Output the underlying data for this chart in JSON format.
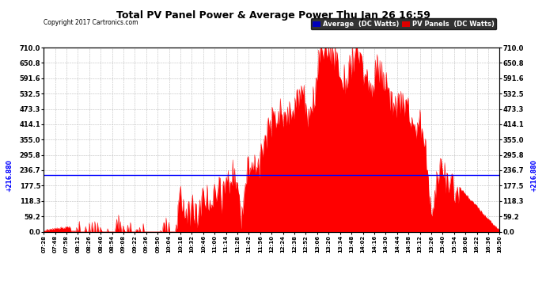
{
  "title": "Total PV Panel Power & Average Power Thu Jan 26 16:59",
  "copyright": "Copyright 2017 Cartronics.com",
  "legend_items": [
    {
      "label": "Average  (DC Watts)",
      "color": "#0000bb",
      "text_color": "#ffffff"
    },
    {
      "label": "PV Panels  (DC Watts)",
      "color": "#dd0000",
      "text_color": "#ffffff"
    }
  ],
  "average_value": 216.88,
  "yticks": [
    0.0,
    59.2,
    118.3,
    177.5,
    236.7,
    295.8,
    355.0,
    414.1,
    473.3,
    532.5,
    591.6,
    650.8,
    710.0
  ],
  "ymax": 710.0,
  "ymin": 0.0,
  "fill_color": "#ff0000",
  "line_color": "#0000ff",
  "background_color": "#ffffff",
  "grid_color": "#bbbbbb",
  "xtick_labels": [
    "07:28",
    "07:48",
    "07:58",
    "08:12",
    "08:26",
    "08:40",
    "08:54",
    "09:08",
    "09:22",
    "09:36",
    "09:50",
    "10:04",
    "10:18",
    "10:32",
    "10:46",
    "11:00",
    "11:14",
    "11:28",
    "11:42",
    "11:56",
    "12:10",
    "12:24",
    "12:38",
    "12:52",
    "13:06",
    "13:20",
    "13:34",
    "13:48",
    "14:02",
    "14:16",
    "14:30",
    "14:44",
    "14:58",
    "15:12",
    "15:26",
    "15:40",
    "15:54",
    "16:08",
    "16:22",
    "16:36",
    "16:50"
  ]
}
